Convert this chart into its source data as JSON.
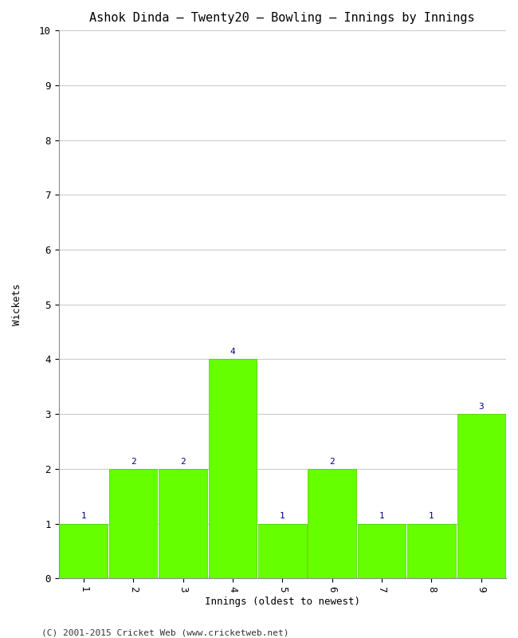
{
  "title": "Ashok Dinda – Twenty20 – Bowling – Innings by Innings",
  "xlabel": "Innings (oldest to newest)",
  "ylabel": "Wickets",
  "categories": [
    "1",
    "2",
    "3",
    "4",
    "5",
    "6",
    "7",
    "8",
    "9"
  ],
  "values": [
    1,
    2,
    2,
    4,
    1,
    2,
    1,
    1,
    3
  ],
  "bar_color": "#66ff00",
  "bar_edge_color": "#44cc00",
  "ylim": [
    0,
    10
  ],
  "yticks": [
    0,
    1,
    2,
    3,
    4,
    5,
    6,
    7,
    8,
    9,
    10
  ],
  "label_color": "#000080",
  "label_fontsize": 8,
  "title_fontsize": 11,
  "axis_label_fontsize": 9,
  "tick_fontsize": 9,
  "background_color": "#ffffff",
  "grid_color": "#cccccc",
  "footer": "(C) 2001-2015 Cricket Web (www.cricketweb.net)",
  "footer_fontsize": 8,
  "bar_width": 0.97
}
